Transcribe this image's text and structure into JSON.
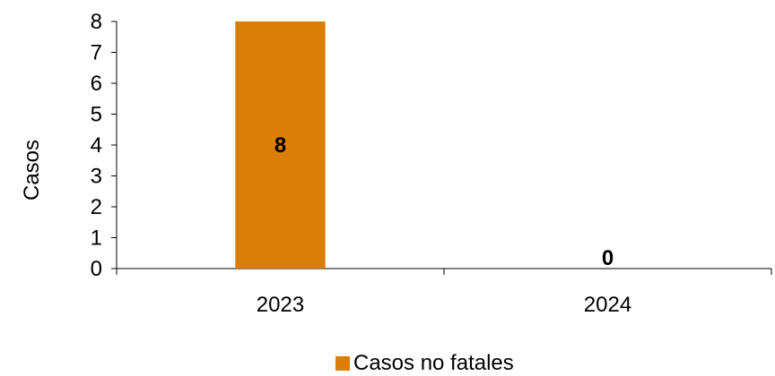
{
  "chart_data": {
    "type": "bar",
    "categories": [
      "2023",
      "2024"
    ],
    "series": [
      {
        "name": "Casos no fatales",
        "values": [
          8,
          0
        ],
        "color": "#DA7E07"
      }
    ],
    "ylabel": "Casos",
    "xlabel": "",
    "ylim": [
      0,
      8
    ],
    "yticks": [
      "0",
      "1",
      "2",
      "3",
      "4",
      "5",
      "6",
      "7",
      "8"
    ],
    "data_labels": [
      "8",
      "0"
    ],
    "legend_position": "bottom",
    "grid": false
  }
}
